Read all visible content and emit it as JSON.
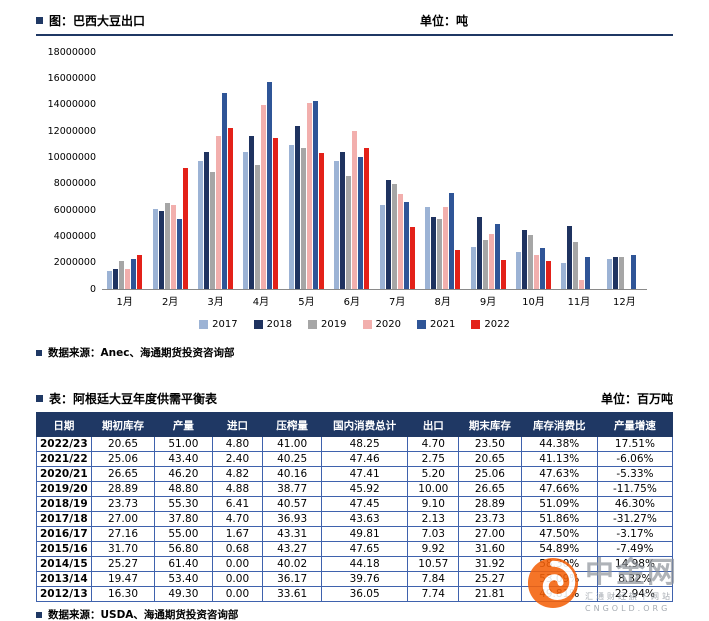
{
  "chart_section": {
    "title": "图：巴西大豆出口",
    "unit_label": "单位：吨",
    "source": "数据来源：Anec、海通期货投资咨询部"
  },
  "chart_data": {
    "type": "bar",
    "title": "巴西大豆出口",
    "unit": "吨",
    "categories": [
      "1月",
      "2月",
      "3月",
      "4月",
      "5月",
      "6月",
      "7月",
      "8月",
      "9月",
      "10月",
      "11月",
      "12月"
    ],
    "ylim": [
      0,
      18000000
    ],
    "ytick_step": 2000000,
    "grid": false,
    "legend_position": "bottom",
    "series": [
      {
        "name": "2017",
        "color": "#9CB3D5",
        "values": [
          1400000,
          6100000,
          9700000,
          10400000,
          10900000,
          9700000,
          6400000,
          6200000,
          3200000,
          2800000,
          2000000,
          2300000
        ]
      },
      {
        "name": "2018",
        "color": "#1F3360",
        "values": [
          1500000,
          5900000,
          10400000,
          11600000,
          12400000,
          10400000,
          8300000,
          5500000,
          5500000,
          4500000,
          4800000,
          2400000
        ]
      },
      {
        "name": "2019",
        "color": "#A6A6A6",
        "values": [
          2100000,
          6500000,
          8900000,
          9400000,
          10700000,
          8600000,
          8000000,
          5300000,
          3700000,
          4100000,
          3600000,
          2400000
        ]
      },
      {
        "name": "2020",
        "color": "#F2AFAD",
        "values": [
          1500000,
          6400000,
          11600000,
          14000000,
          14100000,
          12000000,
          7200000,
          6200000,
          4200000,
          2600000,
          700000,
          null
        ]
      },
      {
        "name": "2021",
        "color": "#2F5597",
        "values": [
          2300000,
          5300000,
          14900000,
          15700000,
          14300000,
          10000000,
          6600000,
          7300000,
          4900000,
          3100000,
          2400000,
          2600000
        ]
      },
      {
        "name": "2022",
        "color": "#E32119",
        "values": [
          2600000,
          9200000,
          12200000,
          11500000,
          10300000,
          10700000,
          4700000,
          3000000,
          2200000,
          2100000,
          null,
          null
        ]
      }
    ]
  },
  "table_section": {
    "title": "表：阿根廷大豆年度供需平衡表",
    "unit_label": "单位：百万吨",
    "source": "数据来源：USDA、海通期货投资咨询部",
    "columns": [
      "日期",
      "期初库存",
      "产量",
      "进口",
      "压榨量",
      "国内消费总计",
      "出口",
      "期末库存",
      "库存消费比",
      "产量增速"
    ],
    "rows": [
      [
        "2022/23",
        "20.65",
        "51.00",
        "4.80",
        "41.00",
        "48.25",
        "4.70",
        "23.50",
        "44.38%",
        "17.51%"
      ],
      [
        "2021/22",
        "25.06",
        "43.40",
        "2.40",
        "40.25",
        "47.46",
        "2.75",
        "20.65",
        "41.13%",
        "-6.06%"
      ],
      [
        "2020/21",
        "26.65",
        "46.20",
        "4.82",
        "40.16",
        "47.41",
        "5.20",
        "25.06",
        "47.63%",
        "-5.33%"
      ],
      [
        "2019/20",
        "28.89",
        "48.80",
        "4.88",
        "38.77",
        "45.92",
        "10.00",
        "26.65",
        "47.66%",
        "-11.75%"
      ],
      [
        "2018/19",
        "23.73",
        "55.30",
        "6.41",
        "40.57",
        "47.45",
        "9.10",
        "28.89",
        "51.09%",
        "46.30%"
      ],
      [
        "2017/18",
        "27.00",
        "37.80",
        "4.70",
        "36.93",
        "43.63",
        "2.13",
        "23.73",
        "51.86%",
        "-31.27%"
      ],
      [
        "2016/17",
        "27.16",
        "55.00",
        "1.67",
        "43.31",
        "49.81",
        "7.03",
        "27.00",
        "47.50%",
        "-3.17%"
      ],
      [
        "2015/16",
        "31.70",
        "56.80",
        "0.68",
        "43.27",
        "47.65",
        "9.92",
        "31.60",
        "54.89%",
        "-7.49%"
      ],
      [
        "2014/15",
        "25.27",
        "61.40",
        "0.00",
        "40.02",
        "44.18",
        "10.57",
        "31.92",
        "58.30%",
        "14.98%"
      ],
      [
        "2013/14",
        "19.47",
        "53.40",
        "0.00",
        "36.17",
        "39.76",
        "7.84",
        "25.27",
        "53.09%",
        "8.32%"
      ],
      [
        "2012/13",
        "16.30",
        "49.30",
        "0.00",
        "33.61",
        "36.05",
        "7.74",
        "21.81",
        "49.81%",
        "22.94%"
      ]
    ]
  },
  "watermark": {
    "title": "中金网",
    "line1": "汇通财经旗下网站",
    "line2": "CNGOLD.ORG",
    "logo": "cngold-swirl-logo",
    "logo_color": "#F4610A"
  },
  "colors": {
    "accent": "#1F3864",
    "table_grid": "#3f62ad"
  }
}
